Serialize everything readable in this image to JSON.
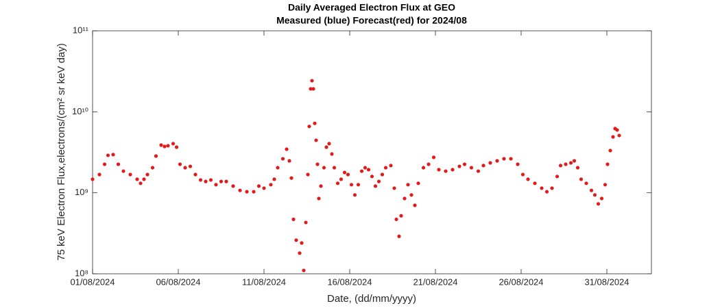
{
  "chart_data": {
    "type": "scatter",
    "title": "Daily Averaged Electron Flux at GEO",
    "subtitle": "Measured (blue) Forecast(red) for 2024/08",
    "xlabel": "Date, (dd/mm/yyyy)",
    "ylabel": "75 keV Electron Flux,electrons/(cm² sr keV day)",
    "log_y": true,
    "grid": false,
    "xlim": [
      1,
      33.6
    ],
    "xticks": [
      {
        "value": 1,
        "label": "01/08/2024"
      },
      {
        "value": 6,
        "label": "06/08/2024"
      },
      {
        "value": 11,
        "label": "11/08/2024"
      },
      {
        "value": 16,
        "label": "16/08/2024"
      },
      {
        "value": 21,
        "label": "21/08/2024"
      },
      {
        "value": 26,
        "label": "26/08/2024"
      },
      {
        "value": 31,
        "label": "31/08/2024"
      }
    ],
    "ylim": [
      100000000,
      100000000000
    ],
    "yticks": [
      {
        "value": 100000000,
        "label": "10⁸"
      },
      {
        "value": 1000000000,
        "label": "10⁹"
      },
      {
        "value": 10000000000,
        "label": "10¹⁰"
      },
      {
        "value": 100000000000,
        "label": "10¹¹"
      }
    ],
    "series": [
      {
        "color": "#e41a1a",
        "x": [
          1.0,
          1.4,
          1.7,
          1.9,
          2.2,
          2.5,
          2.8,
          3.2,
          3.6,
          3.8,
          4.0,
          4.2,
          4.5,
          4.7,
          5.0,
          5.2,
          5.4,
          5.7,
          5.9,
          6.1,
          6.4,
          6.7,
          7.0,
          7.3,
          7.6,
          7.9,
          8.2,
          8.5,
          8.8,
          9.2,
          9.6,
          10.0,
          10.4,
          10.7,
          11.0,
          11.4,
          11.6,
          11.8,
          12.1,
          12.32,
          12.48,
          12.6,
          12.72,
          12.88,
          13.08,
          13.2,
          13.32,
          13.44,
          13.56,
          13.64,
          13.72,
          13.8,
          13.88,
          13.96,
          14.04,
          14.12,
          14.2,
          14.32,
          14.5,
          14.64,
          14.8,
          14.96,
          15.1,
          15.3,
          15.5,
          15.7,
          15.9,
          16.1,
          16.3,
          16.5,
          16.7,
          16.9,
          17.1,
          17.3,
          17.5,
          17.7,
          17.9,
          18.1,
          18.4,
          18.6,
          18.72,
          18.88,
          19.0,
          19.2,
          19.4,
          19.6,
          19.8,
          20.0,
          20.3,
          20.6,
          20.9,
          21.2,
          21.6,
          22.0,
          22.4,
          22.7,
          23.1,
          23.5,
          23.8,
          24.2,
          24.6,
          25.0,
          25.4,
          25.8,
          26.1,
          26.4,
          26.8,
          27.2,
          27.5,
          27.8,
          28.1,
          28.3,
          28.6,
          28.9,
          29.1,
          29.3,
          29.5,
          29.8,
          30.1,
          30.3,
          30.5,
          30.7,
          30.9,
          31.04,
          31.2,
          31.36,
          31.48,
          31.6,
          31.72
        ],
        "values": [
          1470000000.0,
          1680000000.0,
          2250000000.0,
          2900000000.0,
          2960000000.0,
          2250000000.0,
          1850000000.0,
          1680000000.0,
          1470000000.0,
          1310000000.0,
          1470000000.0,
          1680000000.0,
          2040000000.0,
          2840000000.0,
          3880000000.0,
          3730000000.0,
          3810000000.0,
          4040000000.0,
          3660000000.0,
          2250000000.0,
          2040000000.0,
          2120000000.0,
          1680000000.0,
          1440000000.0,
          1380000000.0,
          1440000000.0,
          1260000000.0,
          1380000000.0,
          1380000000.0,
          1210000000.0,
          1070000000.0,
          1030000000.0,
          1030000000.0,
          1210000000.0,
          1140000000.0,
          1260000000.0,
          1470000000.0,
          2040000000.0,
          2630000000.0,
          3450000000.0,
          2480000000.0,
          1520000000.0,
          470000000.0,
          260000000.0,
          180000000.0,
          240000000.0,
          110000000.0,
          430000000.0,
          1680000000.0,
          6600000000.0,
          19200000000.0,
          24200000000.0,
          19200000000.0,
          7200000000.0,
          4450000000.0,
          2250000000.0,
          850000000.0,
          1210000000.0,
          2040000000.0,
          3660000000.0,
          4040000000.0,
          3010000000.0,
          2040000000.0,
          1310000000.0,
          1470000000.0,
          1780000000.0,
          1680000000.0,
          1260000000.0,
          940000000.0,
          1260000000.0,
          1850000000.0,
          2040000000.0,
          1930000000.0,
          1590000000.0,
          1210000000.0,
          1380000000.0,
          1680000000.0,
          2040000000.0,
          2170000000.0,
          1140000000.0,
          470000000.0,
          290000000.0,
          520000000.0,
          850000000.0,
          1260000000.0,
          940000000.0,
          700000000.0,
          1310000000.0,
          2040000000.0,
          2250000000.0,
          2740000000.0,
          1930000000.0,
          1850000000.0,
          1930000000.0,
          2120000000.0,
          2250000000.0,
          2040000000.0,
          1850000000.0,
          2170000000.0,
          2340000000.0,
          2480000000.0,
          2630000000.0,
          2630000000.0,
          2250000000.0,
          1680000000.0,
          1470000000.0,
          1310000000.0,
          1140000000.0,
          1030000000.0,
          1140000000.0,
          1590000000.0,
          2170000000.0,
          2250000000.0,
          2340000000.0,
          2480000000.0,
          2040000000.0,
          1470000000.0,
          1310000000.0,
          1070000000.0,
          940000000.0,
          730000000.0,
          850000000.0,
          1260000000.0,
          2250000000.0,
          3320000000.0,
          4900000000.0,
          6200000000.0,
          5960000000.0,
          5100000000.0
        ]
      }
    ]
  }
}
